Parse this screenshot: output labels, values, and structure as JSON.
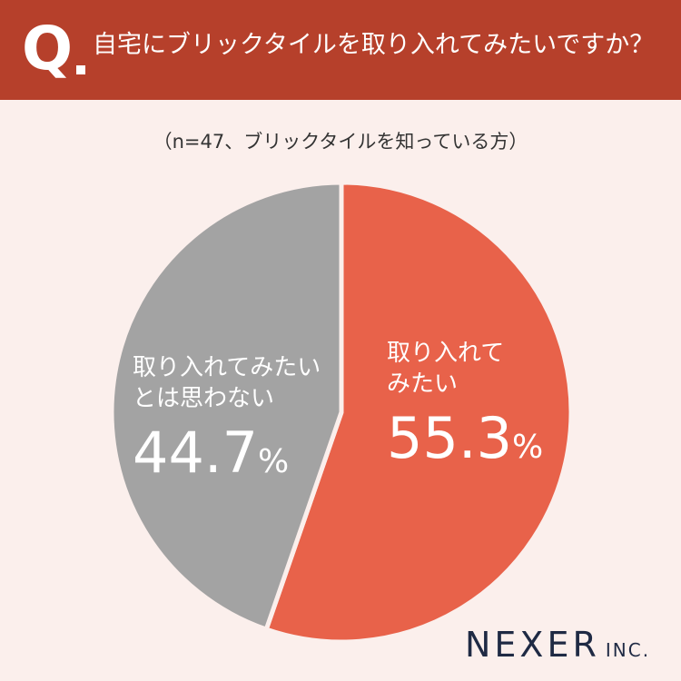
{
  "header": {
    "q_letter": "Q",
    "question": "自宅にブリックタイルを取り入れてみたいですか？",
    "background_color": "#b6402b"
  },
  "note": "（n=47、ブリックタイルを知っている方）",
  "chart_data": {
    "type": "pie",
    "start_angle_deg": 0,
    "direction": "clockwise",
    "slices": [
      {
        "label_line1": "取り入れて",
        "label_line2": "みたい",
        "value": 55.3,
        "value_text": "55.3",
        "unit": "%",
        "color": "#e8624a"
      },
      {
        "label_line1": "取り入れてみたい",
        "label_line2": "とは思わない",
        "value": 44.7,
        "value_text": "44.7",
        "unit": "%",
        "color": "#a3a3a3"
      }
    ]
  },
  "logo": {
    "name": "NEXER",
    "suffix": "INC."
  }
}
